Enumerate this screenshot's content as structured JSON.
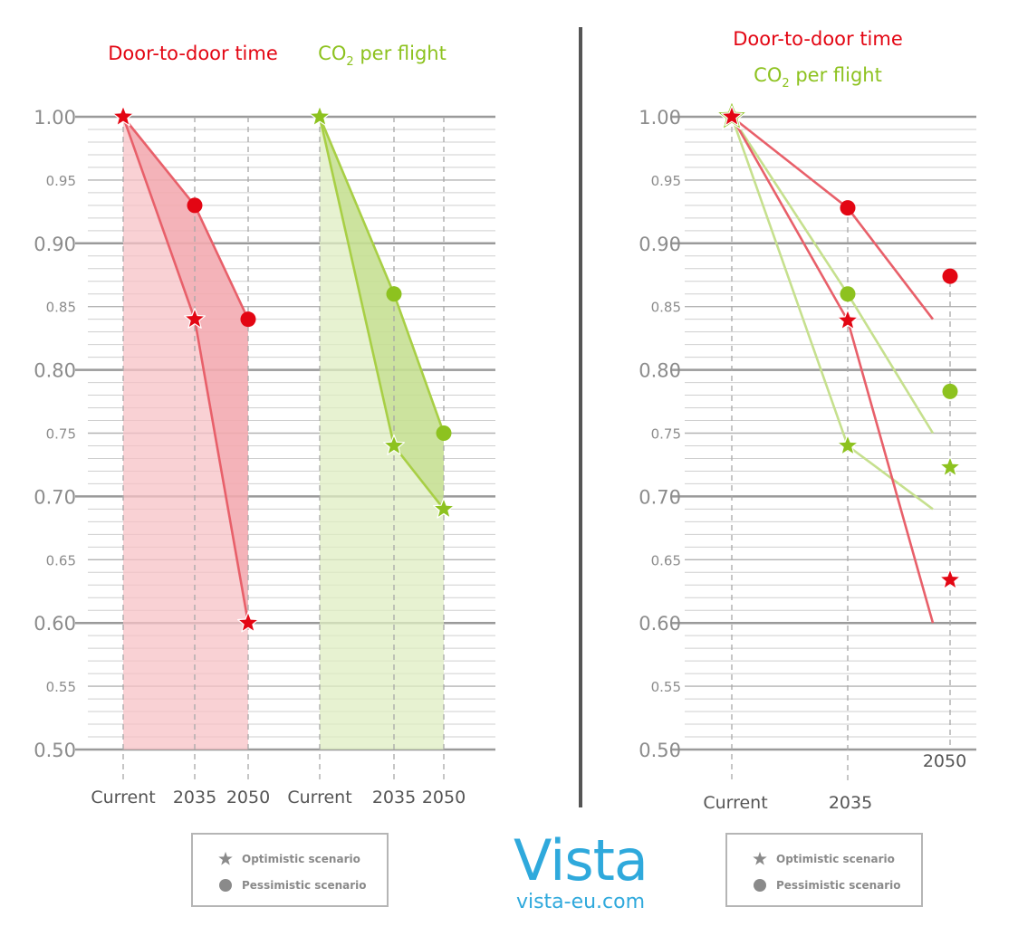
{
  "colors": {
    "red": "#e30613",
    "red_line": "#e8606a",
    "red_fill": "#f7c1c6",
    "green": "#8dc21f",
    "green_line": "#a8cf45",
    "green_light": "#c6e08e",
    "green_fill": "#dfedc2",
    "axis_text": "#8c8c8c",
    "grid_major": "#9a9a9a",
    "grid_minor": "#cfcfcf",
    "logo": "#2fa9dc"
  },
  "left_panel": {
    "door_title": "Door-to-door time",
    "co2_title_main": "CO",
    "co2_title_sub": "2",
    "co2_title_rest": " per flight"
  },
  "right_panel": {
    "door_title": "Door-to-door time",
    "co2_title_main": "CO",
    "co2_title_sub": "2",
    "co2_title_rest": " per flight"
  },
  "legend": {
    "optimistic": "Optimistic scenario",
    "pessimistic": "Pessimistic scenario",
    "optimistic_icon": "star-icon",
    "pessimistic_icon": "circle-icon"
  },
  "logo": {
    "word": "Vista",
    "url": "vista-eu.com"
  },
  "chart_data": [
    {
      "type": "line",
      "panel": "left",
      "title": "Door-to-door time",
      "categories": [
        "Current",
        "2035",
        "2050"
      ],
      "ylim": [
        0.5,
        1.0
      ],
      "yticks": [
        "0.50",
        "0.55",
        "0.60",
        "0.65",
        "0.70",
        "0.75",
        "0.80",
        "0.85",
        "0.90",
        "0.95",
        "1.00"
      ],
      "grid": true,
      "fill_between": true,
      "series": [
        {
          "scenario": "Optimistic scenario",
          "marker": "star",
          "values": [
            1.0,
            0.84,
            0.6
          ]
        },
        {
          "scenario": "Pessimistic scenario",
          "marker": "circle",
          "values": [
            1.0,
            0.93,
            0.84
          ]
        }
      ]
    },
    {
      "type": "line",
      "panel": "left",
      "title": "CO2 per flight",
      "categories": [
        "Current",
        "2035",
        "2050"
      ],
      "ylim": [
        0.5,
        1.0
      ],
      "grid": true,
      "fill_between": true,
      "series": [
        {
          "scenario": "Optimistic scenario",
          "marker": "star",
          "values": [
            1.0,
            0.74,
            0.69
          ]
        },
        {
          "scenario": "Pessimistic scenario",
          "marker": "circle",
          "values": [
            1.0,
            0.86,
            0.75
          ]
        }
      ]
    },
    {
      "type": "line",
      "panel": "right",
      "title": "Door-to-door time / CO2 per flight",
      "categories": [
        "Current",
        "2035",
        "2050"
      ],
      "ylim": [
        0.5,
        1.0
      ],
      "yticks": [
        "0.50",
        "0.55",
        "0.60",
        "0.65",
        "0.70",
        "0.75",
        "0.80",
        "0.85",
        "0.90",
        "0.95",
        "1.00"
      ],
      "grid": true,
      "series": [
        {
          "scenario": "Door-to-door time, pessimistic scenario",
          "marker": "circle",
          "color": "red",
          "values": [
            1.0,
            0.928,
            0.874
          ],
          "line_end": 0.84
        },
        {
          "scenario": "Door-to-door time, optimistic scenario",
          "marker": "star",
          "color": "red",
          "values": [
            1.0,
            0.839,
            0.634
          ],
          "line_end": 0.6
        },
        {
          "scenario": "CO2 per flight, pessimistic scenario",
          "marker": "circle",
          "color": "green",
          "values": [
            1.0,
            0.86,
            0.783
          ],
          "line_end": 0.75
        },
        {
          "scenario": "CO2 per flight, optimistic scenario",
          "marker": "star",
          "color": "green",
          "values": [
            1.0,
            0.74,
            0.723
          ],
          "line_end": 0.69
        }
      ]
    }
  ]
}
